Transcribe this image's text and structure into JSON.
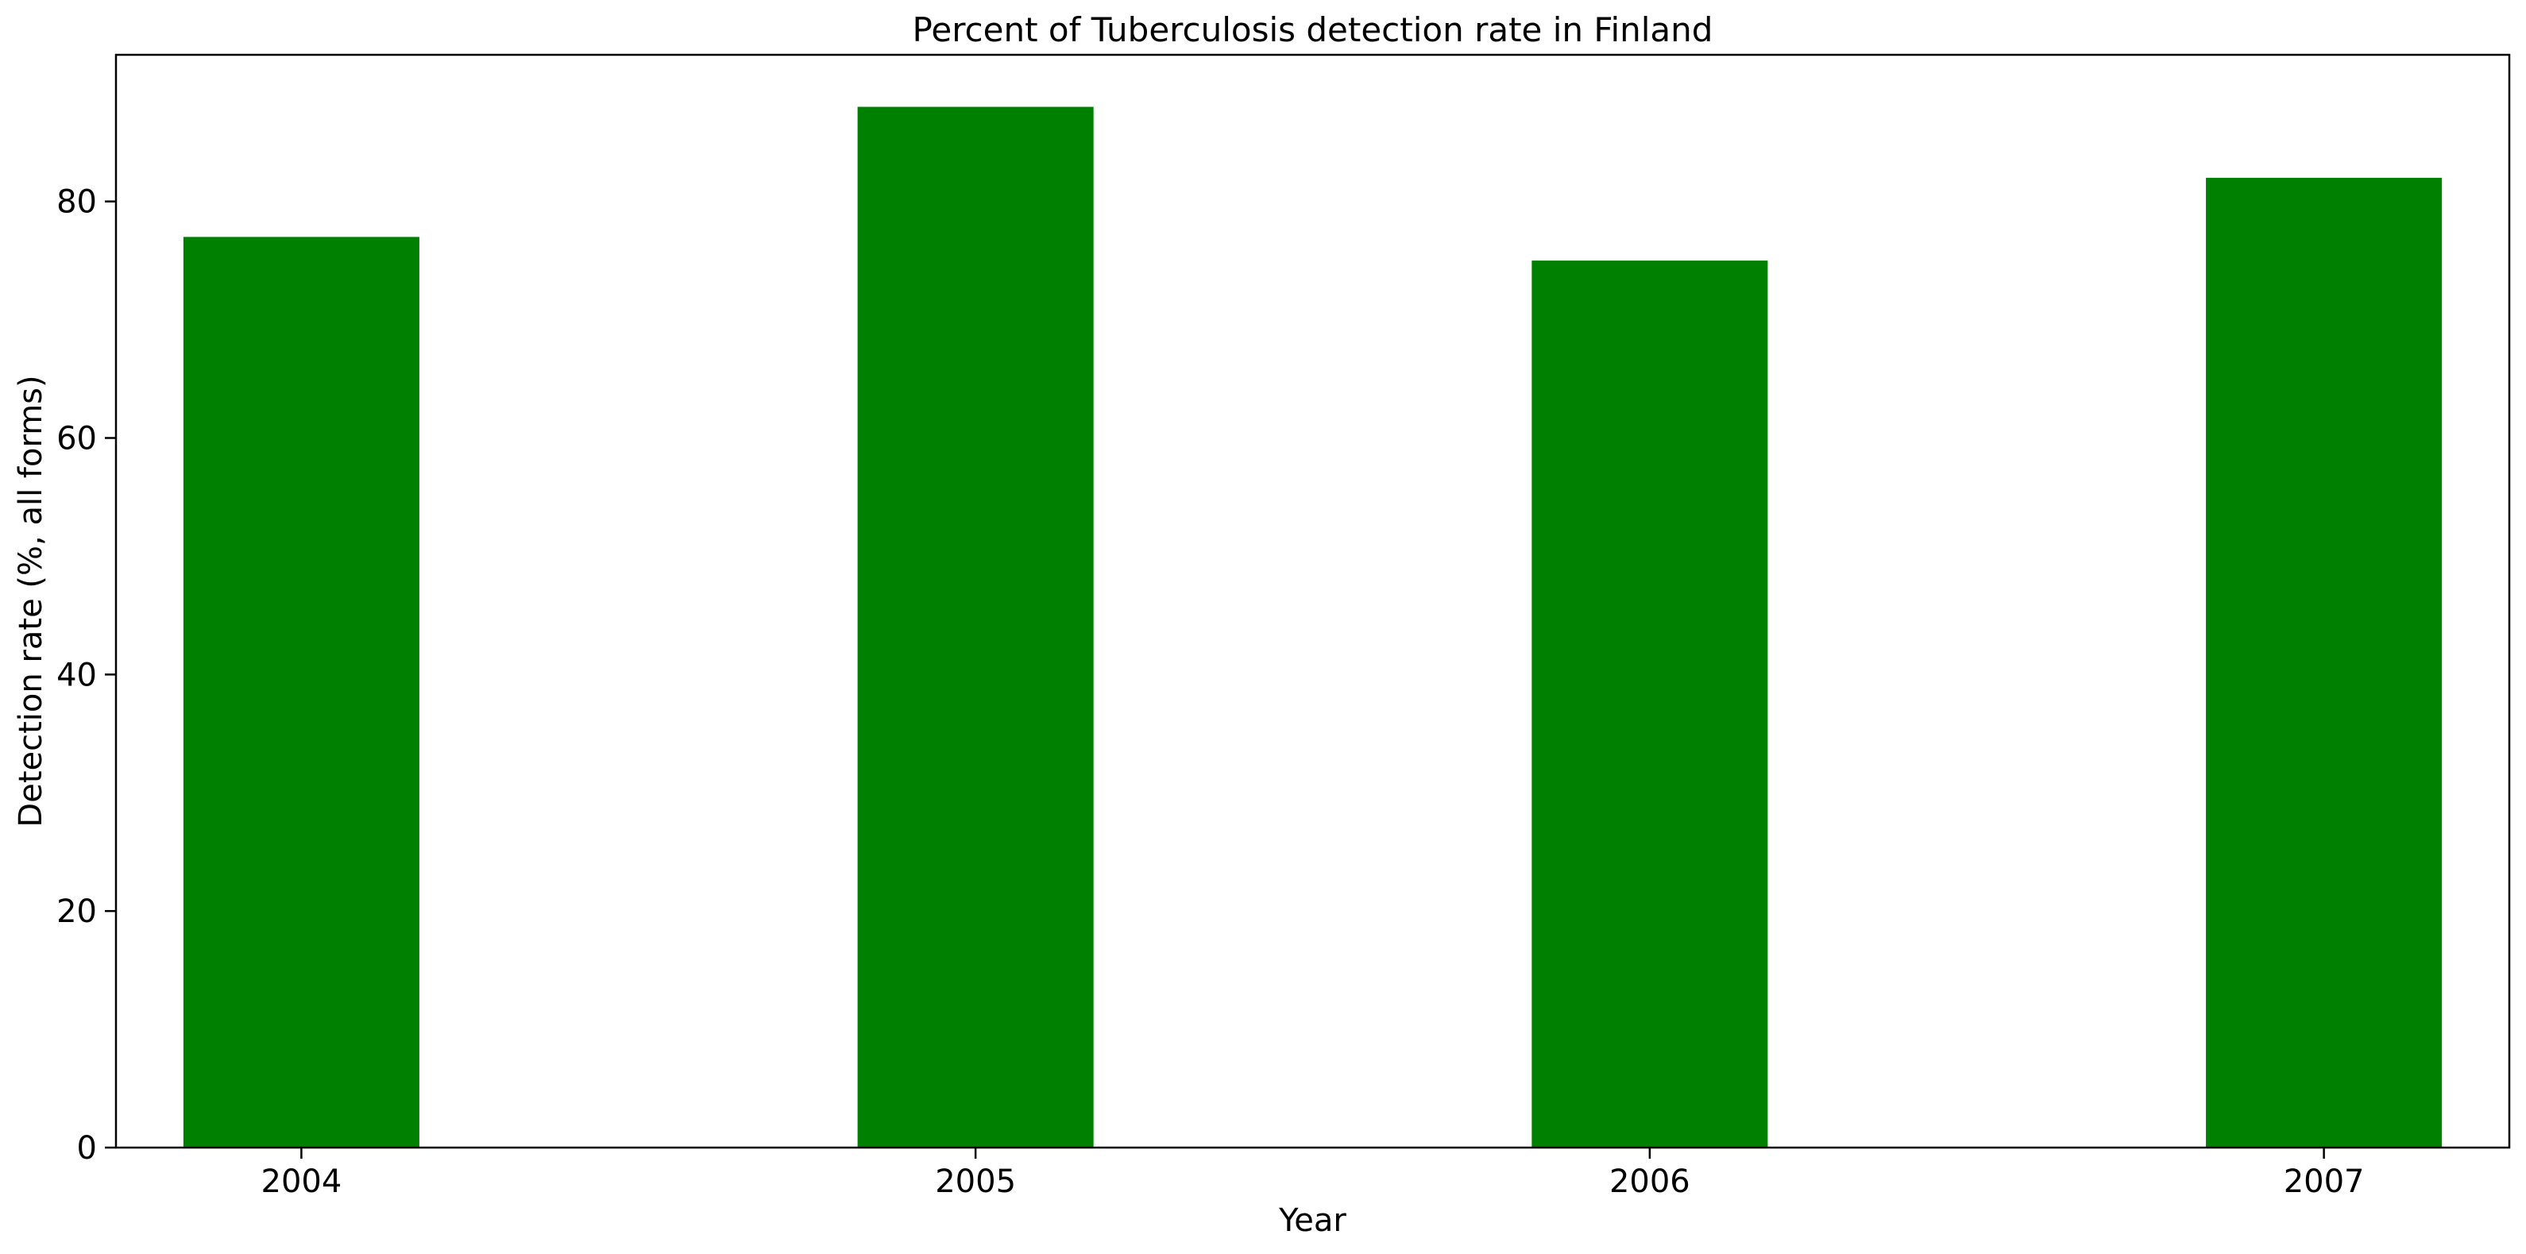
{
  "chart_data": {
    "type": "bar",
    "title": "Percent of Tuberculosis detection rate in Finland",
    "xlabel": "Year",
    "ylabel": "Detection rate (%, all forms)",
    "categories": [
      "2004",
      "2005",
      "2006",
      "2007"
    ],
    "values": [
      77,
      88,
      75,
      82
    ],
    "ylim": [
      0,
      92.4
    ],
    "yticks": [
      0,
      20,
      40,
      60,
      80
    ],
    "grid": false,
    "legend": "none",
    "bar_color": "#008000"
  }
}
